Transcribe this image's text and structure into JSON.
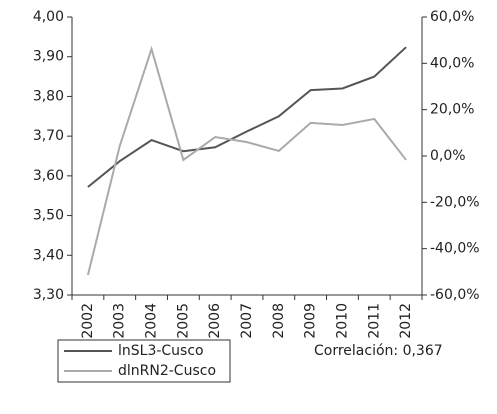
{
  "chart_data": {
    "type": "line",
    "categories": [
      "2002",
      "2003",
      "2004",
      "2005",
      "2006",
      "2007",
      "2008",
      "2009",
      "2010",
      "2011",
      "2012"
    ],
    "series": [
      {
        "name": "lnSL3-Cusco",
        "color": "#555555",
        "values": [
          3.572,
          3.637,
          3.69,
          3.662,
          3.672,
          3.712,
          3.75,
          3.816,
          3.82,
          3.85,
          3.924
        ]
      },
      {
        "name": "dlnRN2-Cusco",
        "color": "#aaaaaa",
        "axis": "y2",
        "values": [
          -51.4,
          4.3,
          46.2,
          -1.7,
          8.2,
          6,
          2.2,
          14.3,
          13.4,
          16,
          -1.7
        ]
      }
    ],
    "ylim": [
      3.3,
      4.0
    ],
    "yticks": [
      {
        "value": 3.3,
        "label": "3,30"
      },
      {
        "value": 3.4,
        "label": "3,40"
      },
      {
        "value": 3.5,
        "label": "3,50"
      },
      {
        "value": 3.6,
        "label": "3,60"
      },
      {
        "value": 3.7,
        "label": "3,70"
      },
      {
        "value": 3.8,
        "label": "3,80"
      },
      {
        "value": 3.9,
        "label": "3,90"
      },
      {
        "value": 4.0,
        "label": "4,00"
      }
    ],
    "y2lim": [
      -60,
      60
    ],
    "y2ticks": [
      {
        "value": -60,
        "label": "-60,0%"
      },
      {
        "value": -40,
        "label": "-40,0%"
      },
      {
        "value": -20,
        "label": "-20,0%"
      },
      {
        "value": 0,
        "label": "0,0%"
      },
      {
        "value": 20,
        "label": "20,0%"
      },
      {
        "value": 40,
        "label": "40,0%"
      },
      {
        "value": 60,
        "label": "60,0%"
      }
    ],
    "annotation": "Correlación: 0,367",
    "legend": "bottom-left"
  }
}
